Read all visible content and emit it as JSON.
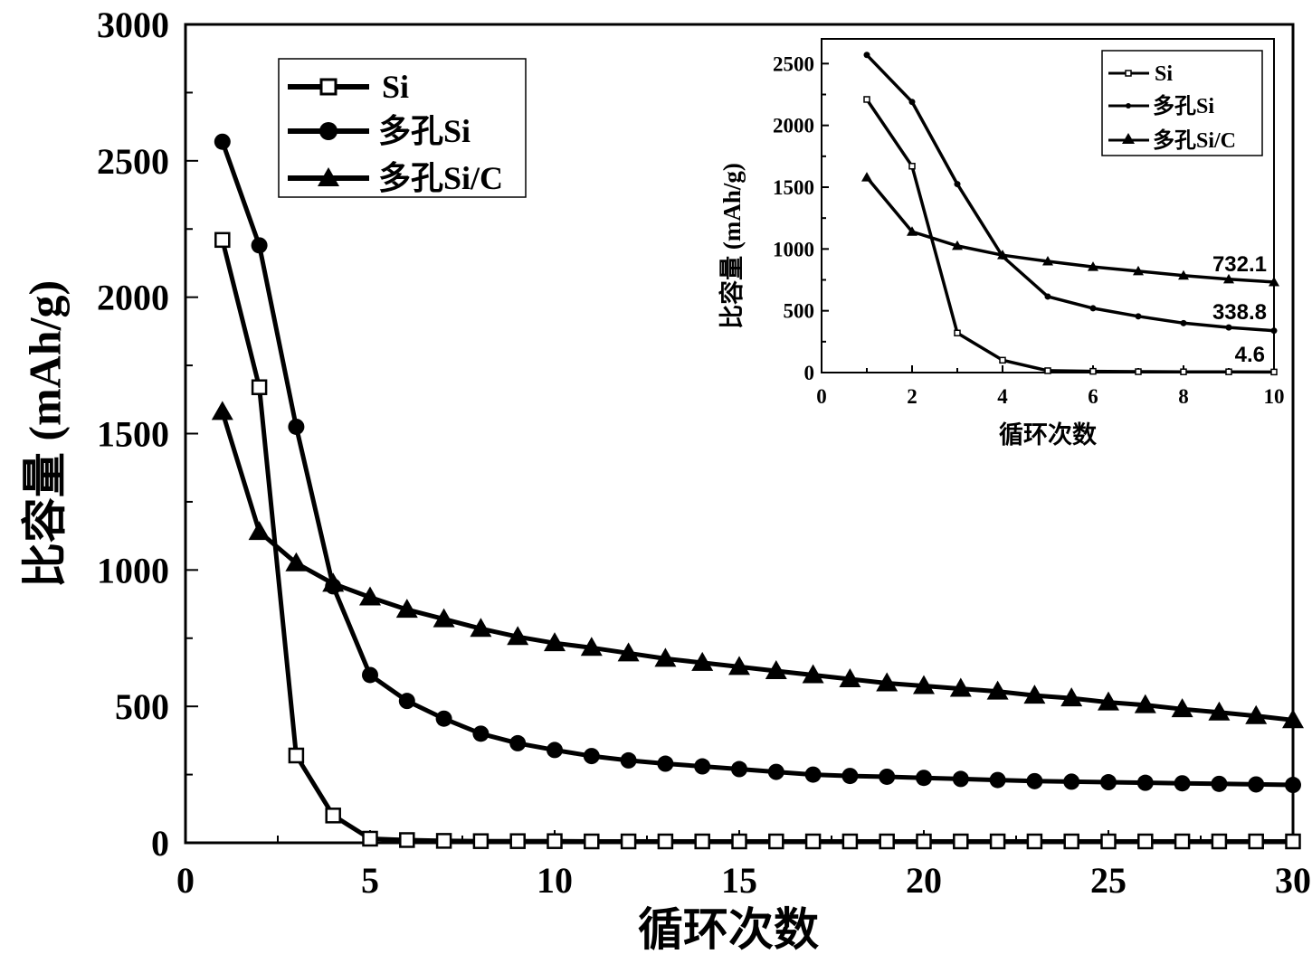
{
  "chart_data": [
    {
      "type": "line",
      "xlabel": "循环次数",
      "ylabel": "比容量 (mAh/g)",
      "xlim": [
        0,
        30
      ],
      "ylim": [
        0,
        3000
      ],
      "xticks": [
        "0",
        "5",
        "10",
        "15",
        "20",
        "25",
        "30"
      ],
      "yticks": [
        "0",
        "500",
        "1000",
        "1500",
        "2000",
        "2500",
        "3000"
      ],
      "legend_position": "top-left",
      "grid": false,
      "series": [
        {
          "name": "Si",
          "marker": "square",
          "x": [
            1,
            2,
            3,
            4,
            5,
            6,
            7,
            8,
            9,
            10,
            11,
            12,
            13,
            14,
            15,
            16,
            17,
            18,
            19,
            20,
            21,
            22,
            23,
            24,
            25,
            26,
            27,
            28,
            29,
            30
          ],
          "values": [
            2210,
            1670,
            320,
            100,
            15,
            10,
            7,
            6,
            6,
            6,
            5,
            5,
            5,
            5,
            5,
            5,
            5,
            5,
            5,
            5,
            5,
            5,
            5,
            5,
            5,
            5,
            5,
            5,
            5,
            5
          ]
        },
        {
          "name": "多孔Si",
          "marker": "circle",
          "x": [
            1,
            2,
            3,
            4,
            5,
            6,
            7,
            8,
            9,
            10,
            11,
            12,
            13,
            14,
            15,
            16,
            17,
            18,
            19,
            20,
            21,
            22,
            23,
            24,
            25,
            26,
            27,
            28,
            29,
            30
          ],
          "values": [
            2570,
            2190,
            1525,
            940,
            615,
            520,
            455,
            400,
            365,
            340,
            318,
            302,
            290,
            280,
            270,
            260,
            250,
            245,
            242,
            238,
            234,
            230,
            226,
            224,
            222,
            220,
            218,
            216,
            214,
            212
          ]
        },
        {
          "name": "多孔Si/C",
          "marker": "triangle",
          "x": [
            1,
            2,
            3,
            4,
            5,
            6,
            7,
            8,
            9,
            10,
            11,
            12,
            13,
            14,
            15,
            16,
            17,
            18,
            19,
            20,
            21,
            22,
            23,
            24,
            25,
            26,
            27,
            28,
            29,
            30
          ],
          "values": [
            1580,
            1140,
            1025,
            950,
            900,
            855,
            820,
            785,
            755,
            732,
            715,
            695,
            675,
            660,
            645,
            630,
            615,
            600,
            585,
            575,
            565,
            555,
            540,
            530,
            515,
            505,
            490,
            478,
            465,
            450
          ]
        }
      ]
    },
    {
      "type": "line",
      "xlabel": "循环次数",
      "ylabel": "比容量 (mAh/g)",
      "xlim": [
        0,
        10
      ],
      "ylim": [
        0,
        2700
      ],
      "xticks": [
        "0",
        "2",
        "4",
        "6",
        "8",
        "10"
      ],
      "yticks": [
        "0",
        "500",
        "1000",
        "1500",
        "2000",
        "2500"
      ],
      "legend_position": "top-right",
      "grid": false,
      "annotations": [
        "732.1",
        "338.8",
        "4.6"
      ],
      "series": [
        {
          "name": "Si",
          "marker": "square",
          "x": [
            1,
            2,
            3,
            4,
            5,
            6,
            7,
            8,
            9,
            10
          ],
          "values": [
            2210,
            1670,
            320,
            100,
            15,
            10,
            7,
            6,
            6,
            4.6
          ]
        },
        {
          "name": "多孔Si",
          "marker": "circle",
          "x": [
            1,
            2,
            3,
            4,
            5,
            6,
            7,
            8,
            9,
            10
          ],
          "values": [
            2570,
            2190,
            1525,
            940,
            615,
            520,
            455,
            400,
            365,
            338.8
          ]
        },
        {
          "name": "多孔Si/C",
          "marker": "triangle",
          "x": [
            1,
            2,
            3,
            4,
            5,
            6,
            7,
            8,
            9,
            10
          ],
          "values": [
            1580,
            1140,
            1025,
            950,
            900,
            855,
            820,
            785,
            755,
            732.1
          ]
        }
      ]
    }
  ]
}
